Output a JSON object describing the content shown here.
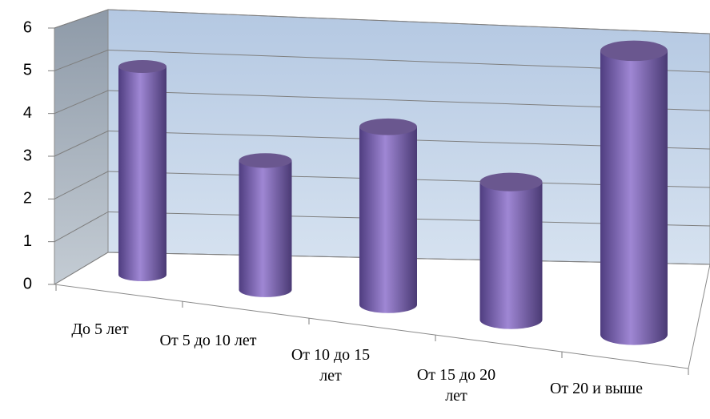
{
  "chart_data": {
    "type": "bar3d-cylinder",
    "categories": [
      "До 5 лет",
      "От 5 до 10 лет",
      "От 10 до 15 лет",
      "От 15 до 20 лет",
      "От 20 и выше"
    ],
    "values": [
      5,
      3,
      4,
      3,
      6
    ],
    "color": "#8064a2",
    "ylim": [
      0,
      6
    ],
    "yticks": [
      0,
      1,
      2,
      3,
      4,
      5,
      6
    ],
    "grid": true
  }
}
